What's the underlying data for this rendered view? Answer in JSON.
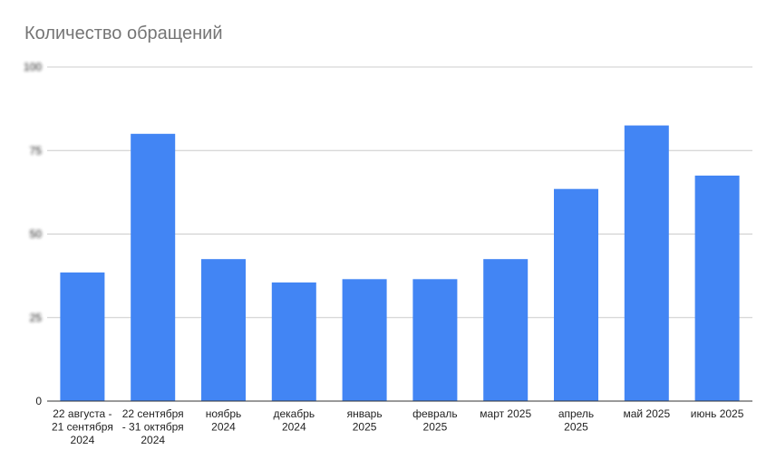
{
  "chart_data": {
    "type": "bar",
    "title": "Количество обращений",
    "xlabel": "",
    "ylabel": "",
    "ylim": [
      0,
      100
    ],
    "yticks": [
      {
        "value": 0,
        "label": "0",
        "blurred": false
      },
      {
        "value": 25,
        "label": "25",
        "blurred": true
      },
      {
        "value": 50,
        "label": "50",
        "blurred": true
      },
      {
        "value": 75,
        "label": "75",
        "blurred": true
      },
      {
        "value": 100,
        "label": "100",
        "blurred": true
      }
    ],
    "grid": true,
    "bar_color": "#4285f4",
    "categories": [
      [
        "22 августа -",
        "21 сентября",
        "2024"
      ],
      [
        "22 сентября",
        "- 31 октября",
        "2024"
      ],
      [
        "ноябрь",
        "2024"
      ],
      [
        "декабрь",
        "2024"
      ],
      [
        "январь",
        "2025"
      ],
      [
        "февраль",
        "2025"
      ],
      [
        "март 2025"
      ],
      [
        "апрель",
        "2025"
      ],
      [
        "май 2025"
      ],
      [
        "июнь 2025"
      ]
    ],
    "values": [
      38.5,
      80,
      42.5,
      35.5,
      36.5,
      36.5,
      42.5,
      63.5,
      82.5,
      67.5
    ]
  }
}
